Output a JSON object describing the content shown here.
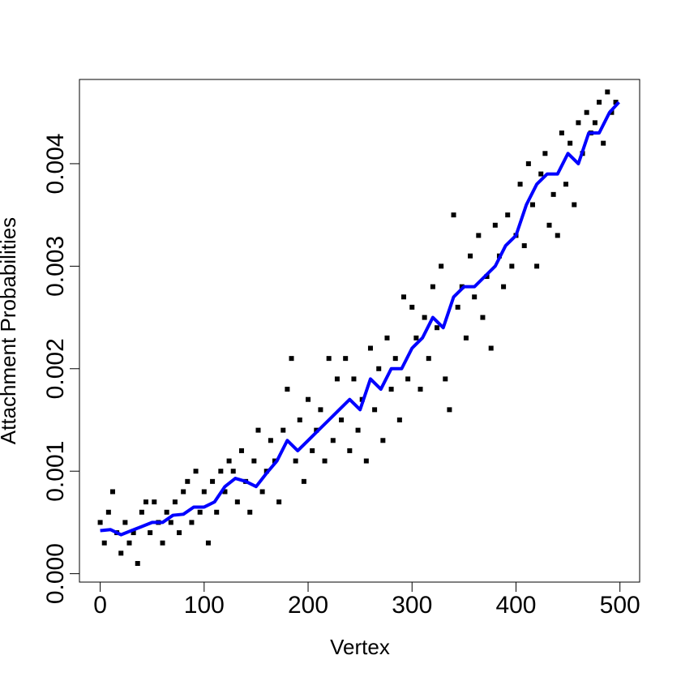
{
  "chart_data": {
    "type": "scatter",
    "xlabel": "Vertex",
    "ylabel": "Attachment Probabilities",
    "xlim": [
      -19.96,
      518.96
    ],
    "ylim": [
      -8.2e-05,
      0.004822
    ],
    "xticks": [
      0,
      100,
      200,
      300,
      400,
      500
    ],
    "yticks": [
      {
        "value": 0,
        "label": "0.000"
      },
      {
        "value": 0.001,
        "label": "0.001"
      },
      {
        "value": 0.002,
        "label": "0.002"
      },
      {
        "value": 0.003,
        "label": "0.003"
      },
      {
        "value": 0.004,
        "label": "0.004"
      }
    ],
    "series": [
      {
        "kind": "points",
        "color": "#000000",
        "x": [
          0,
          4,
          8,
          12,
          16,
          20,
          24,
          28,
          32,
          36,
          40,
          44,
          48,
          52,
          56,
          60,
          64,
          68,
          72,
          76,
          80,
          84,
          88,
          92,
          96,
          100,
          104,
          108,
          112,
          116,
          120,
          124,
          128,
          132,
          136,
          140,
          144,
          148,
          152,
          156,
          160,
          164,
          168,
          172,
          176,
          180,
          184,
          188,
          192,
          196,
          200,
          204,
          208,
          212,
          216,
          220,
          224,
          228,
          232,
          236,
          240,
          244,
          248,
          252,
          256,
          260,
          264,
          268,
          272,
          276,
          280,
          284,
          288,
          292,
          296,
          300,
          304,
          308,
          312,
          316,
          320,
          324,
          328,
          332,
          336,
          340,
          344,
          348,
          352,
          356,
          360,
          364,
          368,
          372,
          376,
          380,
          384,
          388,
          392,
          396,
          400,
          404,
          408,
          412,
          416,
          420,
          424,
          428,
          432,
          436,
          440,
          444,
          448,
          452,
          456,
          460,
          464,
          468,
          472,
          476,
          480,
          484,
          488,
          492,
          496
        ],
        "values": [
          0.0005,
          0.0003,
          0.0006,
          0.0008,
          0.0004,
          0.0002,
          0.0005,
          0.0003,
          0.0004,
          0.0001,
          0.0006,
          0.0007,
          0.0004,
          0.0007,
          0.0005,
          0.0003,
          0.0006,
          0.0005,
          0.0007,
          0.0004,
          0.0008,
          0.0009,
          0.0005,
          0.001,
          0.0006,
          0.0008,
          0.0003,
          0.0009,
          0.0006,
          0.001,
          0.0008,
          0.0011,
          0.001,
          0.0007,
          0.0012,
          0.0009,
          0.0006,
          0.0011,
          0.0014,
          0.0008,
          0.001,
          0.0013,
          0.0011,
          0.0007,
          0.0014,
          0.0018,
          0.0021,
          0.0011,
          0.0015,
          0.0009,
          0.0017,
          0.0012,
          0.0014,
          0.0016,
          0.0011,
          0.0021,
          0.0013,
          0.0019,
          0.0015,
          0.0021,
          0.0012,
          0.0019,
          0.0014,
          0.0017,
          0.0011,
          0.0022,
          0.0016,
          0.002,
          0.0013,
          0.0023,
          0.0018,
          0.0021,
          0.0015,
          0.0027,
          0.0019,
          0.0026,
          0.0023,
          0.0018,
          0.0025,
          0.0021,
          0.0028,
          0.0024,
          0.003,
          0.0019,
          0.0016,
          0.0035,
          0.0026,
          0.0028,
          0.0023,
          0.0031,
          0.0027,
          0.0033,
          0.0025,
          0.0029,
          0.0022,
          0.0034,
          0.0031,
          0.0028,
          0.0035,
          0.003,
          0.0033,
          0.0038,
          0.0032,
          0.004,
          0.0036,
          0.003,
          0.0039,
          0.0041,
          0.0034,
          0.0037,
          0.0033,
          0.0043,
          0.0038,
          0.0042,
          0.0036,
          0.0044,
          0.0041,
          0.0045,
          0.0043,
          0.0044,
          0.0046,
          0.0042,
          0.0047,
          0.0045,
          0.0046
        ]
      },
      {
        "kind": "line",
        "color": "#0000ff",
        "x": [
          0,
          10,
          20,
          30,
          40,
          50,
          60,
          70,
          80,
          90,
          100,
          110,
          120,
          130,
          140,
          150,
          160,
          170,
          180,
          190,
          200,
          210,
          220,
          230,
          240,
          250,
          260,
          270,
          280,
          290,
          300,
          310,
          320,
          330,
          340,
          350,
          360,
          370,
          380,
          390,
          400,
          410,
          420,
          430,
          440,
          450,
          460,
          470,
          480,
          490,
          499
        ],
        "values": [
          0.00042,
          0.00043,
          0.00038,
          0.00042,
          0.00046,
          0.0005,
          0.0005,
          0.00057,
          0.00058,
          0.00065,
          0.00065,
          0.0007,
          0.00085,
          0.00093,
          0.0009,
          0.00085,
          0.00098,
          0.0011,
          0.0013,
          0.0012,
          0.0013,
          0.0014,
          0.0015,
          0.0016,
          0.0017,
          0.0016,
          0.0019,
          0.0018,
          0.002,
          0.002,
          0.0022,
          0.0023,
          0.0025,
          0.0024,
          0.0027,
          0.0028,
          0.0028,
          0.0029,
          0.003,
          0.0032,
          0.0033,
          0.0036,
          0.0038,
          0.0039,
          0.0039,
          0.0041,
          0.004,
          0.0043,
          0.0043,
          0.0045,
          0.0046
        ]
      }
    ]
  }
}
